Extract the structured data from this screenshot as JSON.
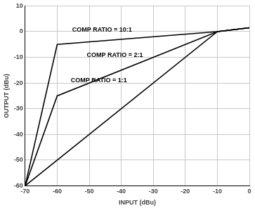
{
  "chart_data": {
    "type": "line",
    "x_label": "INPUT (dBu)",
    "y_label": "OUTPUT (dBu)",
    "x": [
      -70,
      -60,
      -10,
      0
    ],
    "series": [
      {
        "name": "COMP RATIO = 10:1",
        "color": "#000000",
        "values": [
          -60,
          -5,
          0,
          1.5
        ]
      },
      {
        "name": "COMP RATIO = 2:1",
        "color": "#000000",
        "values": [
          -60,
          -25,
          0,
          1.5
        ]
      },
      {
        "name": "COMP RATIO = 1:1",
        "color": "#000000",
        "values": [
          -60,
          -50,
          0,
          1.5
        ]
      }
    ],
    "xlim": [
      -70,
      0
    ],
    "xticks": [
      -70,
      -60,
      -50,
      -40,
      -30,
      -20,
      -10,
      0
    ],
    "ylim": [
      -60,
      10
    ],
    "yticks": [
      -60,
      -50,
      -40,
      -30,
      -20,
      -10,
      0,
      10
    ],
    "grid": true
  }
}
